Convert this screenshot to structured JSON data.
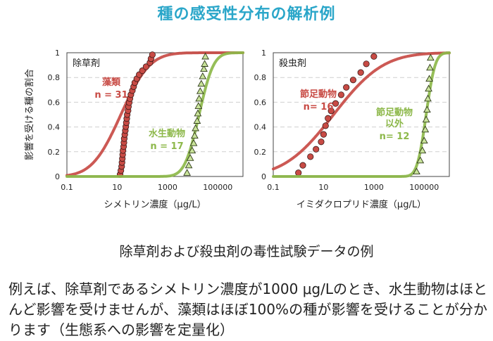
{
  "page": {
    "title": "種の感受性分布の解析例",
    "subtitle": "除草剤および殺虫剤の毒性試験データの例",
    "description": "例えば、除草剤であるシメトリン濃度が1000 μg/Lのとき、水生動物はほとんど影響を受けませんが、藻類はほぼ100%の種が影響を受けることが分かります（生態系への影響を定量化）"
  },
  "colors": {
    "title": "#2aa6c9",
    "algae": "#c84b45",
    "arthropod": "#c84b45",
    "animal": "#8db84a",
    "grid": "#cfcfcf"
  },
  "chart_data": [
    {
      "type": "scatter",
      "panel_label": "除草剤",
      "xlabel": "シメトリン濃度（μg/L）",
      "ylabel": "影響を受ける種の割合",
      "xscale": "log",
      "xlim": [
        0.1,
        1000000
      ],
      "ylim": [
        0,
        1
      ],
      "xticks": [
        "0.1",
        "10",
        "1000",
        "100000"
      ],
      "yticks": [
        "0",
        "0.2",
        "0.4",
        "0.6",
        "0.8",
        "1"
      ],
      "grid": true,
      "series": [
        {
          "name": "藻類",
          "n_label": "n = 31",
          "marker": "circle",
          "color": "#c84b45",
          "curve_median": 14,
          "curve_sigma": 0.9,
          "points": [
            [
              13,
              0.016
            ],
            [
              14,
              0.048
            ],
            [
              15,
              0.081
            ],
            [
              15.5,
              0.113
            ],
            [
              16,
              0.145
            ],
            [
              16.5,
              0.177
            ],
            [
              17,
              0.21
            ],
            [
              18,
              0.242
            ],
            [
              18.5,
              0.274
            ],
            [
              19,
              0.306
            ],
            [
              20,
              0.339
            ],
            [
              21,
              0.371
            ],
            [
              22,
              0.403
            ],
            [
              23,
              0.435
            ],
            [
              24,
              0.468
            ],
            [
              25,
              0.5
            ],
            [
              27,
              0.532
            ],
            [
              28,
              0.565
            ],
            [
              30,
              0.597
            ],
            [
              32,
              0.629
            ],
            [
              35,
              0.661
            ],
            [
              40,
              0.694
            ],
            [
              45,
              0.726
            ],
            [
              50,
              0.758
            ],
            [
              60,
              0.79
            ],
            [
              75,
              0.823
            ],
            [
              100,
              0.855
            ],
            [
              140,
              0.887
            ],
            [
              200,
              0.919
            ],
            [
              220,
              0.952
            ],
            [
              250,
              0.984
            ]
          ]
        },
        {
          "name": "水生動物",
          "n_label": "n = 17",
          "marker": "triangle",
          "color": "#8db84a",
          "curve_median": 18000,
          "curve_sigma": 0.45,
          "points": [
            [
              6000,
              0.03
            ],
            [
              7000,
              0.09
            ],
            [
              8000,
              0.15
            ],
            [
              9500,
              0.21
            ],
            [
              11000,
              0.27
            ],
            [
              12000,
              0.33
            ],
            [
              13000,
              0.39
            ],
            [
              15000,
              0.45
            ],
            [
              16000,
              0.51
            ],
            [
              17000,
              0.57
            ],
            [
              18000,
              0.63
            ],
            [
              20000,
              0.69
            ],
            [
              22000,
              0.75
            ],
            [
              25000,
              0.81
            ],
            [
              28000,
              0.87
            ],
            [
              30000,
              0.91
            ],
            [
              32000,
              0.97
            ]
          ]
        }
      ]
    },
    {
      "type": "scatter",
      "panel_label": "殺虫剤",
      "xlabel": "イミダクロプリド濃度（μg/L）",
      "xscale": "log",
      "xlim": [
        0.1,
        1000000
      ],
      "ylim": [
        0,
        1
      ],
      "xticks": [
        "0.1",
        "10",
        "1000",
        "100000"
      ],
      "yticks": [
        "0",
        "0.2",
        "0.4",
        "0.6",
        "0.8",
        "1"
      ],
      "grid": true,
      "series": [
        {
          "name": "節足動物",
          "n_label": "n= 16",
          "marker": "circle",
          "color": "#c84b45",
          "curve_median": 25,
          "curve_sigma": 1.55,
          "points": [
            [
              1,
              0.03
            ],
            [
              1.5,
              0.09
            ],
            [
              3,
              0.16
            ],
            [
              5,
              0.22
            ],
            [
              8,
              0.28
            ],
            [
              10,
              0.34
            ],
            [
              12,
              0.41
            ],
            [
              15,
              0.47
            ],
            [
              20,
              0.53
            ],
            [
              30,
              0.59
            ],
            [
              50,
              0.66
            ],
            [
              80,
              0.72
            ],
            [
              150,
              0.78
            ],
            [
              300,
              0.84
            ],
            [
              500,
              0.91
            ],
            [
              1000,
              0.97
            ]
          ]
        },
        {
          "name": "節足動物\n以外",
          "n_label": "n= 12",
          "marker": "triangle",
          "color": "#8db84a",
          "curve_median": 120000,
          "curve_sigma": 0.28,
          "points": [
            [
              50000,
              0.04
            ],
            [
              70000,
              0.13
            ],
            [
              85000,
              0.21
            ],
            [
              100000,
              0.29
            ],
            [
              110000,
              0.38
            ],
            [
              120000,
              0.46
            ],
            [
              130000,
              0.54
            ],
            [
              140000,
              0.63
            ],
            [
              150000,
              0.71
            ],
            [
              160000,
              0.79
            ],
            [
              170000,
              0.88
            ],
            [
              180000,
              0.96
            ]
          ]
        }
      ]
    }
  ]
}
